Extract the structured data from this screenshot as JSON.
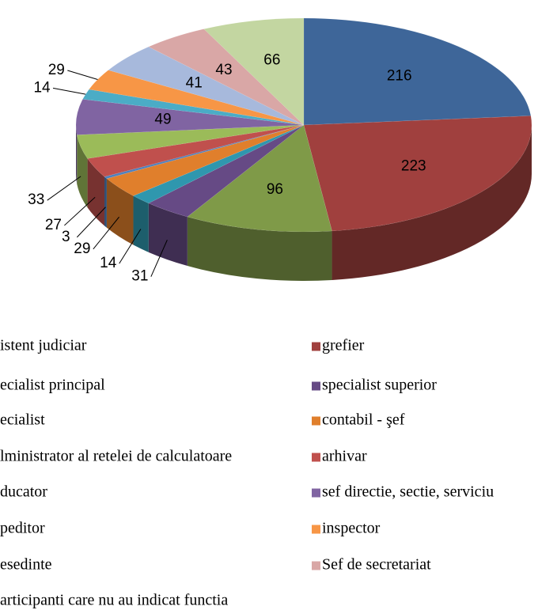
{
  "chart_data": {
    "type": "pie3d",
    "categories": [
      "istent judiciar",
      "grefier",
      "ecialist principal",
      "specialist superior",
      "ecialist",
      "contabil - şef",
      "lministrator al retelei de calculatoare",
      "arhivar",
      "ducator",
      "sef directie, sectie, serviciu",
      "peditor",
      "inspector",
      "esedinte",
      "Sef de secretariat",
      "articipanti care nu au indicat functia"
    ],
    "values": [
      216,
      223,
      96,
      31,
      14,
      29,
      3,
      27,
      33,
      49,
      14,
      29,
      41,
      43,
      66
    ],
    "colors": [
      "#3E6699",
      "#A0403E",
      "#7F9A48",
      "#664A85",
      "#2F97AE",
      "#E07F2C",
      "#4F81BD",
      "#C0504D",
      "#9BBB59",
      "#8064A2",
      "#4BACC6",
      "#F79646",
      "#A7B9DC",
      "#D9A7A6",
      "#C3D6A1"
    ]
  }
}
